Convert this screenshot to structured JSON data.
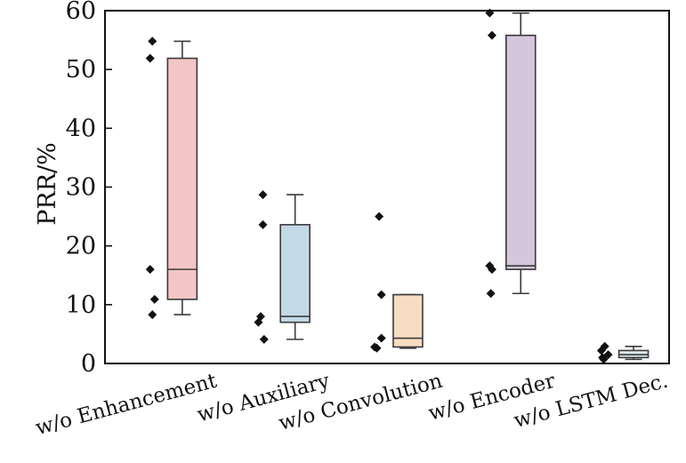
{
  "chart_data": {
    "type": "box",
    "ylabel": "PRR/%",
    "xlabel": "",
    "ylim": [
      0,
      60
    ],
    "yticks": [
      0,
      10,
      20,
      30,
      40,
      50,
      60
    ],
    "grid": false,
    "categories": [
      "w/o Enhancement",
      "w/o Auxiliary",
      "w/o Convolution",
      "w/o Encoder",
      "w/o  LSTM Dec."
    ],
    "boxes": [
      {
        "category": "w/o Enhancement",
        "color": "#f4c5c6",
        "whisker_low": 8.3,
        "q1": 10.9,
        "median": 16.0,
        "q3": 51.9,
        "whisker_high": 54.8,
        "points": [
          {
            "x": 0.42,
            "y": 54.8
          },
          {
            "x": 0.4,
            "y": 51.9
          },
          {
            "x": 0.4,
            "y": 16.0
          },
          {
            "x": 0.44,
            "y": 10.9
          },
          {
            "x": 0.42,
            "y": 8.3
          }
        ]
      },
      {
        "category": "w/o Auxiliary",
        "color": "#c3d9e6",
        "whisker_low": 4.1,
        "q1": 7.0,
        "median": 8.0,
        "q3": 23.6,
        "whisker_high": 28.7,
        "points": [
          {
            "x": 1.4,
            "y": 28.7
          },
          {
            "x": 1.4,
            "y": 23.6
          },
          {
            "x": 1.38,
            "y": 8.0
          },
          {
            "x": 1.36,
            "y": 7.0
          },
          {
            "x": 1.41,
            "y": 4.1
          }
        ]
      },
      {
        "category": "w/o Convolution",
        "color": "#f7dcc1",
        "whisker_low": 2.6,
        "q1": 2.8,
        "median": 4.3,
        "q3": 11.7,
        "whisker_high": 11.7,
        "points": [
          {
            "x": 2.43,
            "y": 25.0
          },
          {
            "x": 2.45,
            "y": 11.7
          },
          {
            "x": 2.45,
            "y": 4.3
          },
          {
            "x": 2.39,
            "y": 2.8
          },
          {
            "x": 2.41,
            "y": 2.6
          }
        ]
      },
      {
        "category": "w/o Encoder",
        "color": "#d5c6db",
        "whisker_low": 11.9,
        "q1": 16.0,
        "median": 16.6,
        "q3": 55.8,
        "whisker_high": 59.6,
        "points": [
          {
            "x": 3.41,
            "y": 59.6
          },
          {
            "x": 3.43,
            "y": 55.8
          },
          {
            "x": 3.41,
            "y": 16.6
          },
          {
            "x": 3.43,
            "y": 16.0
          },
          {
            "x": 3.42,
            "y": 11.9
          }
        ]
      },
      {
        "category": "w/o  LSTM Dec.",
        "color": "#dde8ee",
        "whisker_low": 0.7,
        "q1": 1.0,
        "median": 1.5,
        "q3": 2.2,
        "whisker_high": 2.9,
        "points": [
          {
            "x": 4.43,
            "y": 2.9
          },
          {
            "x": 4.4,
            "y": 2.2
          },
          {
            "x": 4.46,
            "y": 1.5
          },
          {
            "x": 4.41,
            "y": 1.0
          },
          {
            "x": 4.42,
            "y": 0.7
          }
        ]
      }
    ]
  },
  "colors": {
    "stroke": "#3a3a3a",
    "axis": "#111111",
    "point": "#111111"
  }
}
